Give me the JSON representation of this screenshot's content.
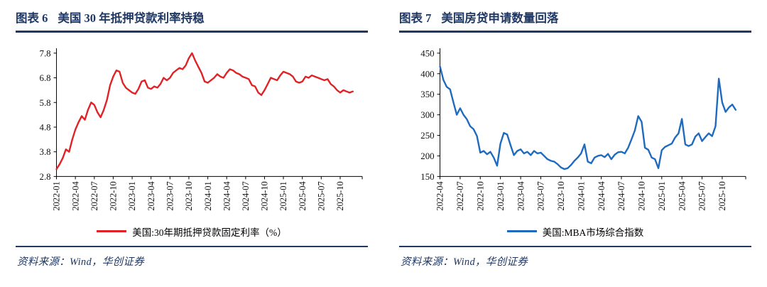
{
  "figures": [
    {
      "label": "图表 6",
      "title": "美国 30 年抵押贷款利率持稳",
      "legend": "美国:30年期抵押贷款固定利率（%）",
      "source": "资料来源：Wind，华创证券"
    },
    {
      "label": "图表 7",
      "title": "美国房贷申请数量回落",
      "legend": "美国:MBA市场综合指数",
      "source": "资料来源：Wind，华创证券"
    }
  ],
  "colors": {
    "navy": "#1f3864",
    "red": "#e02226",
    "blue": "#1e6abf",
    "axis": "#000000"
  },
  "chart_data": [
    {
      "type": "line",
      "title": "美国 30 年抵押贷款利率持稳",
      "xlabel": "",
      "ylabel": "",
      "ylim": [
        2.8,
        7.8
      ],
      "yticks": [
        2.8,
        3.8,
        4.8,
        5.8,
        6.8,
        7.8
      ],
      "grid": false,
      "legend_position": "bottom",
      "x_tick_interval_months": 3,
      "x_months_total": 48.5,
      "x_tick_labels": [
        "2022-01",
        "2022-04",
        "2022-07",
        "2022-10",
        "2023-01",
        "2023-04",
        "2023-07",
        "2023-10",
        "2024-01",
        "2024-04",
        "2024-07",
        "2024-10",
        "2025-01",
        "2025-04",
        "2025-07",
        "2025-10"
      ],
      "series": [
        {
          "name": "美国:30年期抵押贷款固定利率（%）",
          "color": "#e02226",
          "start": "2022-01",
          "points_per_month": 2,
          "values": [
            3.1,
            3.3,
            3.55,
            3.9,
            3.8,
            4.3,
            4.7,
            5.0,
            5.25,
            5.1,
            5.5,
            5.8,
            5.7,
            5.4,
            5.2,
            5.5,
            5.9,
            6.5,
            6.85,
            7.1,
            7.05,
            6.6,
            6.4,
            6.3,
            6.2,
            6.15,
            6.35,
            6.65,
            6.7,
            6.4,
            6.35,
            6.45,
            6.4,
            6.55,
            6.8,
            6.7,
            6.8,
            7.0,
            7.1,
            7.2,
            7.15,
            7.3,
            7.6,
            7.8,
            7.5,
            7.25,
            7.0,
            6.65,
            6.6,
            6.7,
            6.8,
            6.95,
            6.85,
            6.8,
            7.0,
            7.15,
            7.1,
            7.0,
            6.95,
            6.85,
            6.8,
            6.75,
            6.5,
            6.45,
            6.2,
            6.1,
            6.3,
            6.55,
            6.8,
            6.75,
            6.7,
            6.9,
            7.05,
            7.0,
            6.95,
            6.85,
            6.65,
            6.6,
            6.65,
            6.85,
            6.8,
            6.9,
            6.85,
            6.8,
            6.75,
            6.7,
            6.75,
            6.55,
            6.45,
            6.3,
            6.2,
            6.3,
            6.25,
            6.2,
            6.25
          ]
        }
      ]
    },
    {
      "type": "line",
      "title": "美国房贷申请数量回落",
      "xlabel": "",
      "ylabel": "",
      "ylim": [
        150,
        450
      ],
      "yticks": [
        150,
        200,
        250,
        300,
        350,
        400,
        450
      ],
      "grid": false,
      "legend_position": "bottom",
      "x_tick_interval_months": 3,
      "x_months_total": 45.5,
      "x_tick_labels": [
        "2022-04",
        "2022-07",
        "2022-10",
        "2023-01",
        "2023-04",
        "2023-07",
        "2023-10",
        "2024-01",
        "2024-04",
        "2024-07",
        "2024-10",
        "2025-01",
        "2025-04",
        "2025-07",
        "2025-10"
      ],
      "series": [
        {
          "name": "美国:MBA市场综合指数",
          "color": "#1e6abf",
          "start": "2022-04",
          "points_per_month": 2,
          "values": [
            418,
            385,
            368,
            362,
            330,
            300,
            316,
            300,
            289,
            272,
            265,
            248,
            208,
            212,
            204,
            210,
            196,
            176,
            230,
            256,
            252,
            226,
            202,
            212,
            216,
            206,
            210,
            202,
            212,
            206,
            208,
            200,
            192,
            188,
            186,
            180,
            172,
            168,
            170,
            178,
            188,
            196,
            206,
            228,
            186,
            182,
            196,
            200,
            202,
            197,
            205,
            192,
            203,
            209,
            210,
            206,
            220,
            240,
            262,
            297,
            283,
            220,
            215,
            196,
            192,
            170,
            214,
            222,
            226,
            230,
            245,
            255,
            290,
            228,
            224,
            228,
            247,
            255,
            236,
            246,
            255,
            248,
            272,
            388,
            330,
            307,
            318,
            325,
            312
          ]
        }
      ]
    }
  ]
}
